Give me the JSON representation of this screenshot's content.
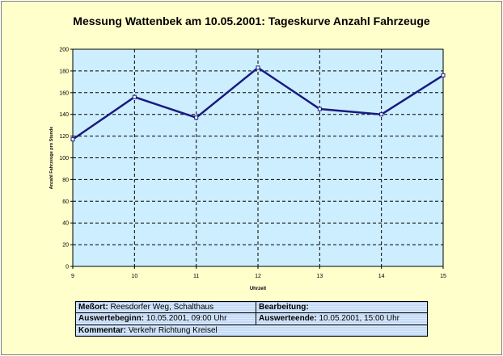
{
  "chart_data": {
    "type": "line",
    "title": "Messung Wattenbek am 10.05.2001: Tageskurve Anzahl Fahrzeuge",
    "xlabel": "Uhrzeit",
    "ylabel": "Anzahl Fahrzeuge pro Stunde",
    "x": [
      9,
      10,
      11,
      12,
      13,
      14,
      15
    ],
    "series": [
      {
        "values": [
          117,
          156,
          137,
          183,
          145,
          140,
          176
        ]
      }
    ],
    "xlim": [
      9,
      15
    ],
    "ylim": [
      0,
      200
    ],
    "yticks": [
      0,
      20,
      40,
      60,
      80,
      100,
      120,
      140,
      160,
      180,
      200
    ],
    "grid": true,
    "legend": "none"
  },
  "colors": {
    "plot_bg": "#cceeff",
    "line": "#1a1a80",
    "grid": "#000000",
    "frame_bg": "#ffffcc",
    "info_bg": "#ddeeff"
  },
  "info": {
    "messort_label": "Meßort:",
    "messort_value": "Reesdorfer Weg, Schalthaus",
    "bearbeitung_label": "Bearbeitung:",
    "bearbeitung_value": "",
    "auswertebeginn_label": "Auswertebeginn:",
    "auswertebeginn_value": "10.05.2001, 09:00 Uhr",
    "auswerteende_label": "Auswerteende:",
    "auswerteende_value": "10.05.2001, 15:00 Uhr",
    "kommentar_label": "Kommentar:",
    "kommentar_value": "Verkehr Richtung Kreisel"
  }
}
